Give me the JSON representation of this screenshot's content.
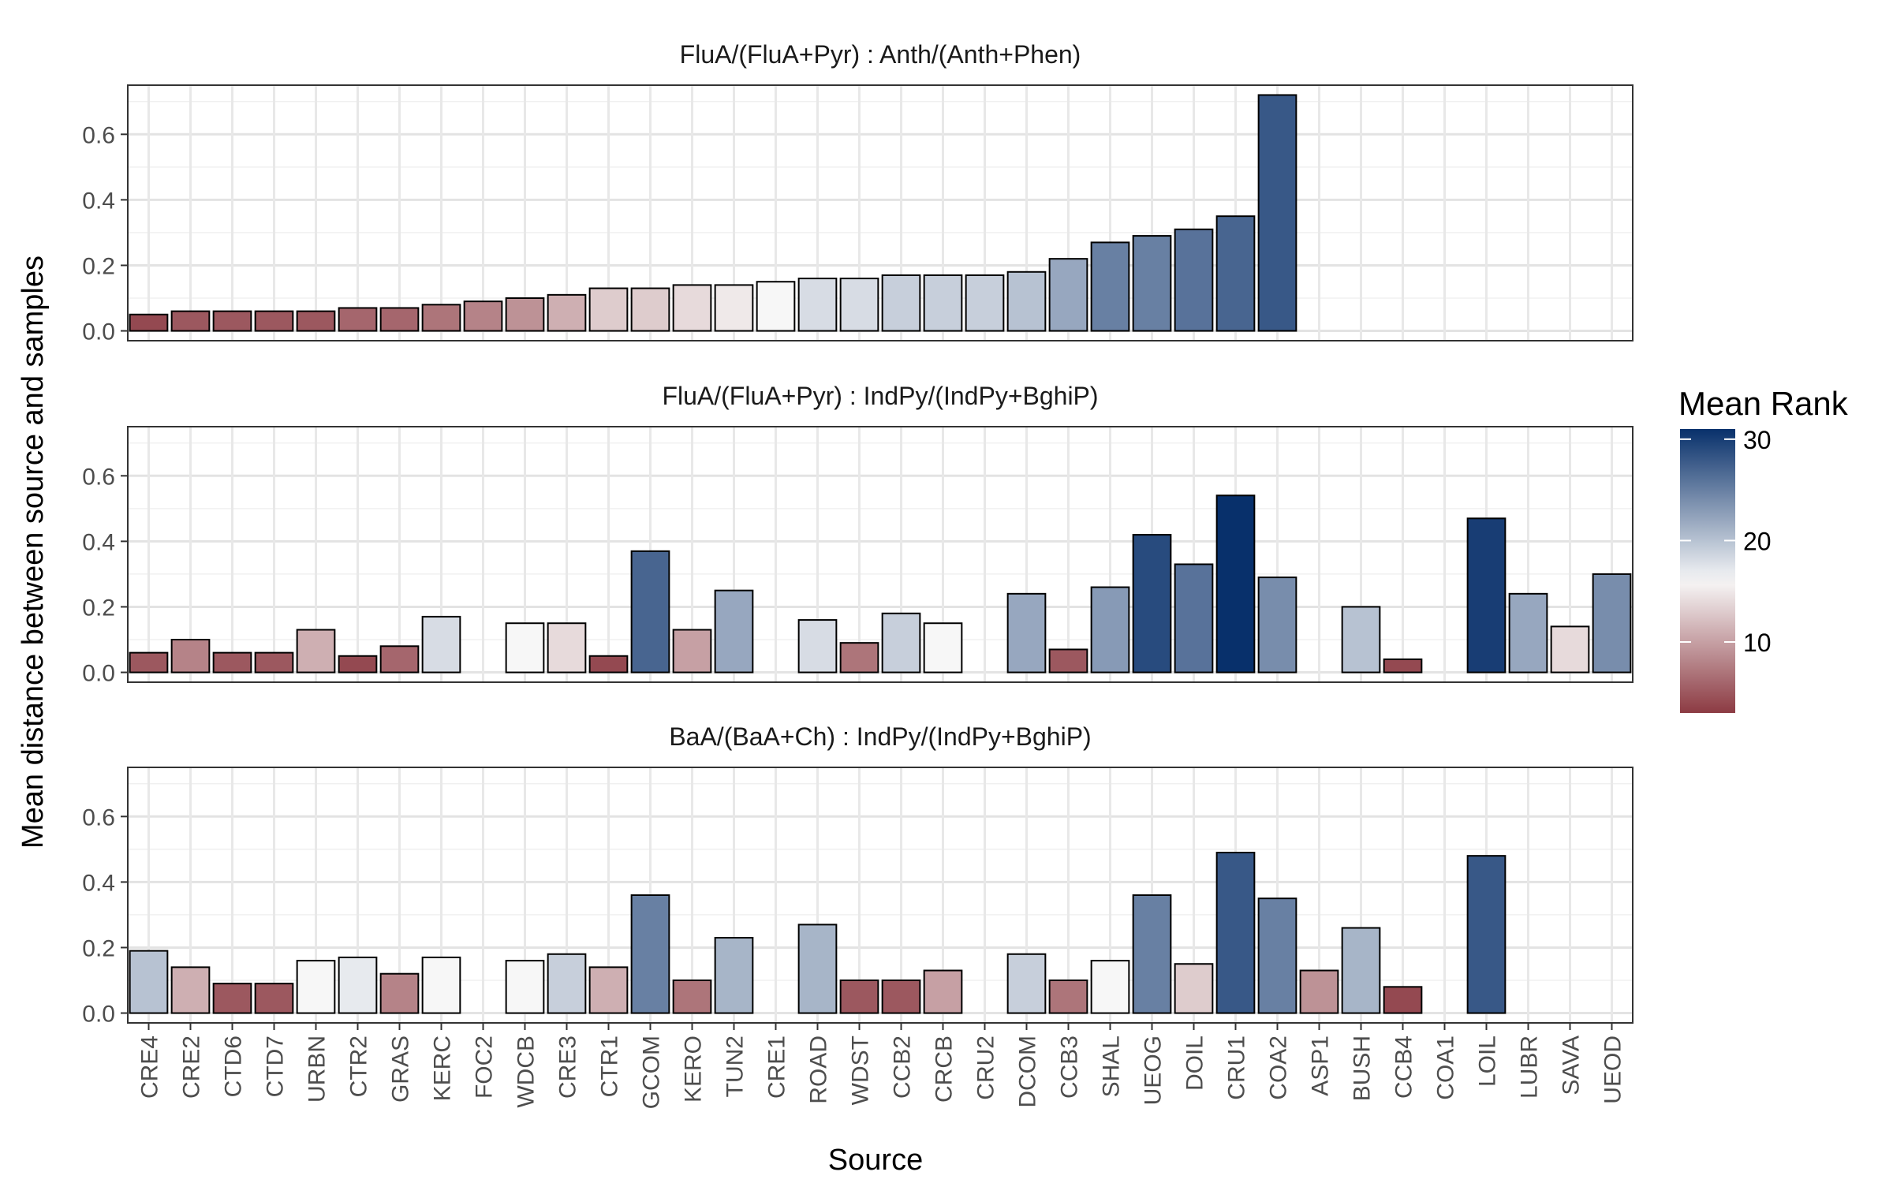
{
  "chart_data": {
    "type": "bar",
    "ylabel": "Mean distance between source and samples",
    "xlabel": "Source",
    "ylim": [
      -0.03,
      0.75
    ],
    "yticks": [
      0.0,
      0.2,
      0.4,
      0.6
    ],
    "ytick_labels": [
      "0.0",
      "0.2",
      "0.4",
      "0.6"
    ],
    "grid": true,
    "categories": [
      "CRE4",
      "CRE2",
      "CTD6",
      "CTD7",
      "URBN",
      "CTR2",
      "GRAS",
      "KERC",
      "FOC2",
      "WDCB",
      "CRE3",
      "CTR1",
      "GCOM",
      "KERO",
      "TUN2",
      "CRE1",
      "ROAD",
      "WDST",
      "CCB2",
      "CRCB",
      "CRU2",
      "DCOM",
      "CCB3",
      "SHAL",
      "UEOG",
      "DOIL",
      "CRU1",
      "COA2",
      "ASP1",
      "BUSH",
      "CCB4",
      "COA1",
      "LOIL",
      "LUBR",
      "SAVA",
      "UEOD"
    ],
    "legend": {
      "title": "Mean Rank",
      "position": "right",
      "ticks": [
        10,
        20,
        30
      ],
      "tick_labels": [
        "10",
        "20",
        "30"
      ],
      "range": [
        3,
        31
      ],
      "colors": {
        "low": "#8c3b43",
        "mid": "#f7f7f7",
        "high": "#08306b"
      }
    },
    "panels": [
      {
        "title": "FluA/(FluA+Pyr) : Anth/(Anth+Phen)",
        "values": [
          0.05,
          0.06,
          0.06,
          0.06,
          0.06,
          0.07,
          0.07,
          0.08,
          0.09,
          0.1,
          0.11,
          0.13,
          0.13,
          0.14,
          0.14,
          0.15,
          0.16,
          0.16,
          0.17,
          0.17,
          0.17,
          0.18,
          0.22,
          0.27,
          0.29,
          0.31,
          0.35,
          0.72,
          null,
          null,
          null,
          null,
          null,
          null,
          null,
          null
        ],
        "ranks": [
          4,
          5,
          5,
          5,
          5,
          6,
          6,
          7,
          8,
          9,
          11,
          13,
          13,
          14,
          15,
          16,
          18,
          18,
          19,
          19,
          19,
          20,
          22,
          25,
          25,
          26,
          27,
          28,
          null,
          null,
          null,
          null,
          null,
          null,
          null,
          null
        ]
      },
      {
        "title": "FluA/(FluA+Pyr) : IndPy/(IndPy+BghiP)",
        "values": [
          0.06,
          0.1,
          0.06,
          0.06,
          0.13,
          0.05,
          0.08,
          0.17,
          null,
          0.15,
          0.15,
          0.05,
          0.37,
          0.13,
          0.25,
          null,
          0.16,
          0.09,
          0.18,
          0.15,
          null,
          0.24,
          0.07,
          0.26,
          0.42,
          0.33,
          0.54,
          0.29,
          null,
          0.2,
          0.04,
          null,
          0.47,
          0.24,
          0.14,
          0.3
        ],
        "ranks": [
          5,
          8,
          5,
          5,
          11,
          4,
          6,
          18,
          null,
          16,
          14,
          4,
          27,
          10,
          22,
          null,
          18,
          7,
          19,
          16,
          null,
          22,
          5,
          23,
          29,
          26,
          31,
          24,
          null,
          20,
          4,
          null,
          30,
          22,
          14,
          24
        ]
      },
      {
        "title": "BaA/(BaA+Ch) : IndPy/(IndPy+BghiP)",
        "values": [
          0.19,
          0.14,
          0.09,
          0.09,
          0.16,
          0.17,
          0.12,
          0.17,
          null,
          0.16,
          0.18,
          0.14,
          0.36,
          0.1,
          0.23,
          null,
          0.27,
          0.1,
          0.1,
          0.13,
          null,
          0.18,
          0.1,
          0.16,
          0.36,
          0.15,
          0.49,
          0.35,
          0.13,
          0.26,
          0.08,
          null,
          0.48,
          null,
          null,
          null
        ],
        "ranks": [
          20,
          11,
          5,
          5,
          16,
          17,
          8,
          16,
          null,
          16,
          19,
          11,
          25,
          7,
          21,
          null,
          21,
          5,
          5,
          10,
          null,
          19,
          7,
          16,
          25,
          13,
          28,
          25,
          9,
          21,
          4,
          null,
          28,
          null,
          null,
          null
        ]
      }
    ]
  }
}
